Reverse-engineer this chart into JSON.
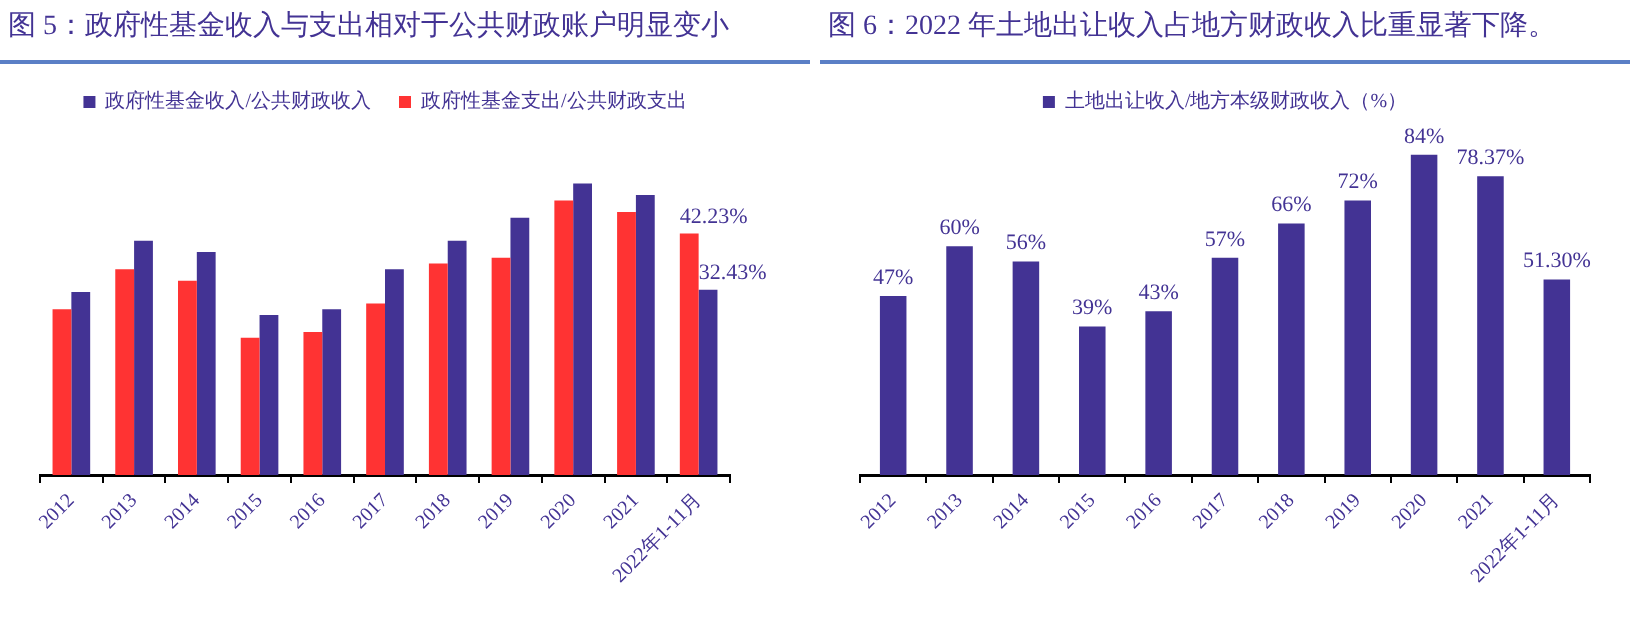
{
  "chart_data": [
    {
      "type": "bar",
      "title": "图 5：政府性基金收入与支出相对于公共财政账户明显变小",
      "legend": "top",
      "categories": [
        "2012",
        "2013",
        "2014",
        "2015",
        "2016",
        "2017",
        "2018",
        "2019",
        "2020",
        "2021",
        "2022年1-11月"
      ],
      "series": [
        {
          "name": "政府性基金支出/公共财政支出",
          "color": "#ff3333",
          "values": [
            29,
            36,
            34,
            24,
            25,
            30,
            37,
            38,
            48,
            46,
            42.23
          ],
          "value_labels": [
            null,
            null,
            null,
            null,
            null,
            null,
            null,
            null,
            null,
            null,
            "42.23%"
          ]
        },
        {
          "name": "政府性基金收入/公共财政收入",
          "color": "#433394",
          "values": [
            32,
            41,
            39,
            28,
            29,
            36,
            41,
            45,
            51,
            49,
            32.43
          ],
          "value_labels": [
            null,
            null,
            null,
            null,
            null,
            null,
            null,
            null,
            null,
            null,
            "32.43%"
          ]
        }
      ]
    },
    {
      "type": "bar",
      "title": "图 6：2022 年土地出让收入占地方财政收入比重显著下降。",
      "legend": "top",
      "categories": [
        "2012",
        "2013",
        "2014",
        "2015",
        "2016",
        "2017",
        "2018",
        "2019",
        "2020",
        "2021",
        "2022年1-11月"
      ],
      "series": [
        {
          "name": "土地出让收入/地方本级财政收入（%）",
          "color": "#433394",
          "values": [
            47,
            60,
            56,
            39,
            43,
            57,
            66,
            72,
            84,
            78.37,
            51.3
          ],
          "value_labels": [
            "47%",
            "60%",
            "56%",
            "39%",
            "43%",
            "57%",
            "66%",
            "72%",
            "84%",
            "78.37%",
            "51.30%"
          ]
        }
      ]
    }
  ]
}
